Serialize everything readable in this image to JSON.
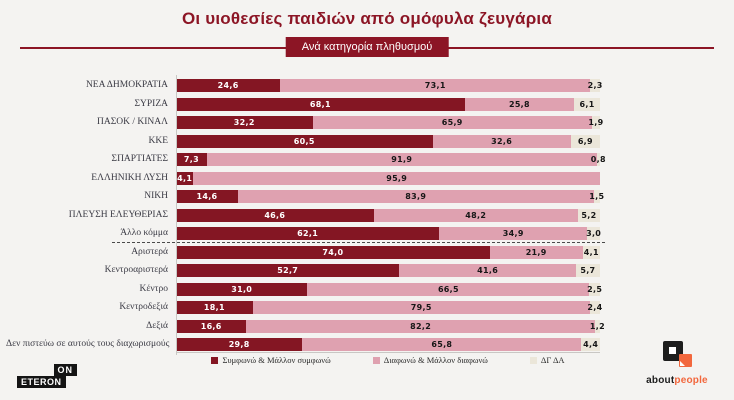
{
  "title": "Οι υιοθεσίες παιδιών από ομόφυλα ζευγάρια",
  "subtitle_badge": "Ανά κατηγορία πληθυσμού",
  "colors": {
    "accent_red": "#8c1525",
    "bar_agree": "#841623",
    "bar_disagree": "#dfa1b0",
    "bar_dk": "#ebe6d9",
    "background": "#f4f3f1",
    "logo_orange": "#f2673d"
  },
  "chart_data": {
    "type": "bar",
    "orientation": "horizontal-stacked",
    "xlim": [
      0,
      100
    ],
    "value_format": "comma-decimal-1",
    "group_divider_after_index": 8,
    "categories": [
      "ΝΕΑ ΔΗΜΟΚΡΑΤΙΑ",
      "ΣΥΡΙΖΑ",
      "ΠΑΣΟΚ / ΚΙΝΑΛ",
      "ΚΚΕ",
      "ΣΠΑΡΤΙΑΤΕΣ",
      "ΕΛΛΗΝΙΚΗ ΛΥΣΗ",
      "ΝΙΚΗ",
      "ΠΛΕΥΣΗ ΕΛΕΥΘΕΡΙΑΣ",
      "Άλλο κόμμα",
      "Αριστερά",
      "Κεντροαριστερά",
      "Κέντρο",
      "Κεντροδεξιά",
      "Δεξιά",
      "Δεν πιστεύω σε αυτούς τους διαχωρισμούς"
    ],
    "series": [
      {
        "name": "Συμφωνώ & Μάλλον συμφωνώ",
        "color": "#841623",
        "values": [
          24.6,
          68.1,
          32.2,
          60.5,
          7.3,
          4.1,
          14.6,
          46.6,
          62.1,
          74.0,
          52.7,
          31.0,
          18.1,
          16.6,
          29.8
        ]
      },
      {
        "name": "Διαφωνώ & Μάλλον διαφωνώ",
        "color": "#dfa1b0",
        "values": [
          73.1,
          25.8,
          65.9,
          32.6,
          91.9,
          95.9,
          83.9,
          48.2,
          34.9,
          21.9,
          41.6,
          66.5,
          79.5,
          82.2,
          65.8
        ]
      },
      {
        "name": "ΔΓ ΔΑ",
        "color": "#ebe6d9",
        "values": [
          2.3,
          6.1,
          1.9,
          6.9,
          0.8,
          0,
          1.5,
          5.2,
          3.0,
          4.1,
          5.7,
          2.5,
          2.4,
          1.2,
          4.4
        ]
      }
    ]
  },
  "logos": {
    "eteron": {
      "line1": "ON",
      "line2": "ETERON"
    },
    "aboutpeople": {
      "part1": "about",
      "part2": "people"
    }
  }
}
